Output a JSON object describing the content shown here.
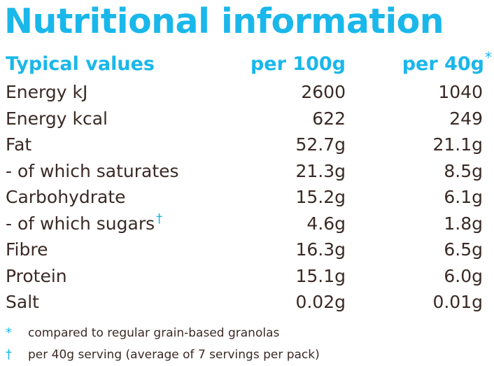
{
  "title": "Nutritional information",
  "header": {
    "label": "Typical values",
    "col1": "per 100g",
    "col2": "per 40g",
    "col2_mark": "*"
  },
  "rows": [
    {
      "label": "Energy kJ",
      "per100": "2600",
      "per40": "1040",
      "mark": ""
    },
    {
      "label": "Energy kcal",
      "per100": "622",
      "per40": "249",
      "mark": ""
    },
    {
      "label": "Fat",
      "per100": "52.7g",
      "per40": "21.1g",
      "mark": ""
    },
    {
      "label": "- of which saturates",
      "per100": "21.3g",
      "per40": "8.5g",
      "mark": ""
    },
    {
      "label": "Carbohydrate",
      "per100": "15.2g",
      "per40": "6.1g",
      "mark": ""
    },
    {
      "label": "- of which sugars",
      "per100": "4.6g",
      "per40": "1.8g",
      "mark": "†"
    },
    {
      "label": "Fibre",
      "per100": "16.3g",
      "per40": "6.5g",
      "mark": ""
    },
    {
      "label": "Protein",
      "per100": "15.1g",
      "per40": "6.0g",
      "mark": ""
    },
    {
      "label": "Salt",
      "per100": "0.02g",
      "per40": "0.01g",
      "mark": ""
    }
  ],
  "notes": [
    {
      "symbol": "*",
      "text": "compared to regular grain-based granolas"
    },
    {
      "symbol": "†",
      "text": "per 40g serving (average of 7 servings per pack)"
    }
  ],
  "colors": {
    "accent": "#1ab7ea",
    "text": "#3a2a26"
  }
}
